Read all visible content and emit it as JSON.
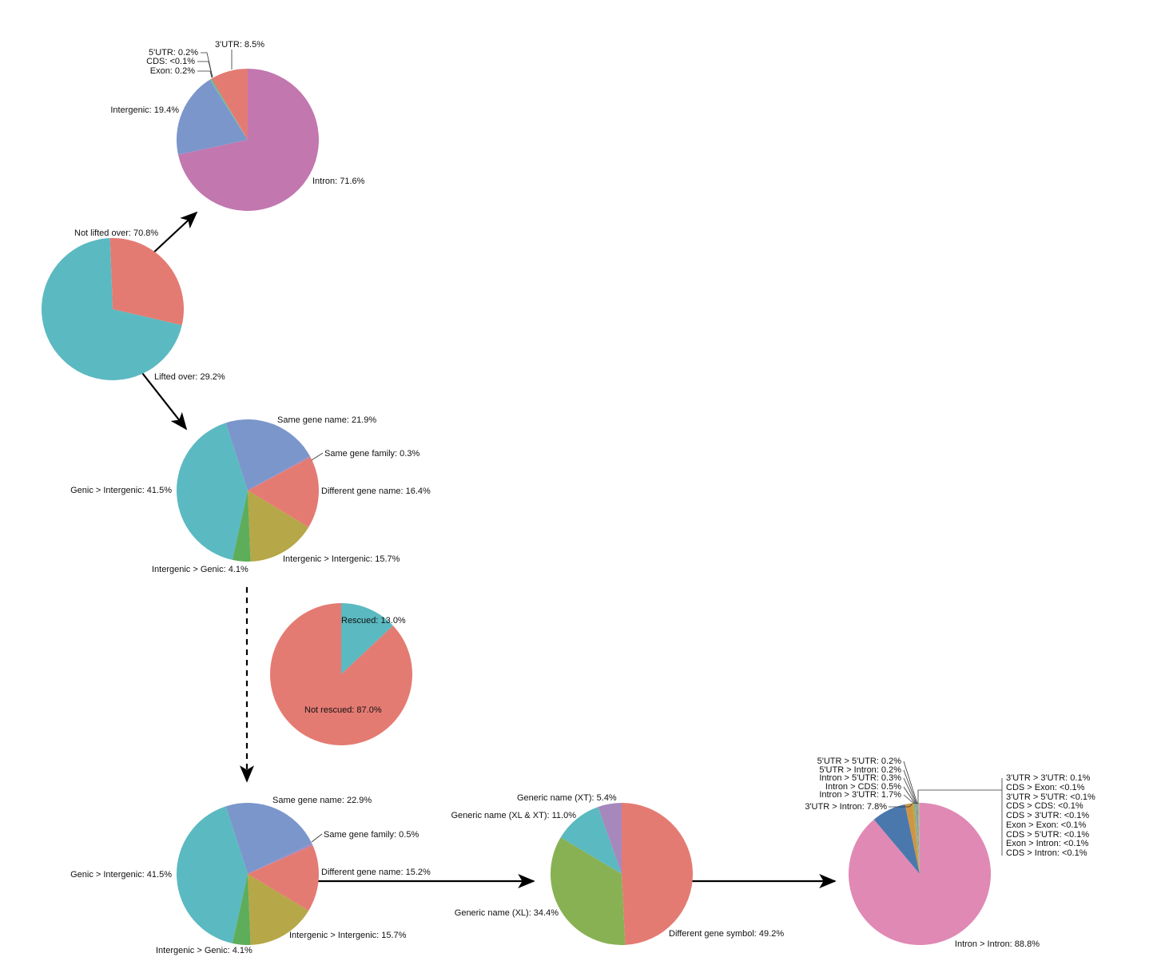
{
  "colors": {
    "teal": "#5bb9c1",
    "salmon": "#e47b73",
    "blue": "#7b96cb",
    "pink": "#c277af",
    "olive": "#b6a748",
    "green": "#5dad5a",
    "lime": "#88b153",
    "purple": "#a688bd",
    "orange": "#d09544",
    "darkblue": "#4a78ad",
    "rose": "#e089b4"
  },
  "chart_data": [
    {
      "id": "liftover",
      "type": "pie",
      "slices": [
        {
          "label": "Not lifted over: 70.8%",
          "value": 70.8,
          "color": "#5bb9c1"
        },
        {
          "label": "Lifted over: 29.2%",
          "value": 29.2,
          "color": "#e47b73"
        }
      ]
    },
    {
      "id": "not-lifted-breakdown",
      "type": "pie",
      "slices": [
        {
          "label": "Intron: 71.6%",
          "value": 71.6,
          "color": "#c277af"
        },
        {
          "label": "Intergenic: 19.4%",
          "value": 19.4,
          "color": "#7b96cb"
        },
        {
          "label": "Exon: 0.2%",
          "value": 0.2,
          "color": "#5bb9c1"
        },
        {
          "label": "CDS: <0.1%",
          "value": 0.05,
          "color": "#b6a748"
        },
        {
          "label": "5'UTR: 0.2%",
          "value": 0.2,
          "color": "#5dad5a"
        },
        {
          "label": "3'UTR: 8.5%",
          "value": 8.5,
          "color": "#e47b73"
        }
      ]
    },
    {
      "id": "lifted-breakdown",
      "type": "pie",
      "slices": [
        {
          "label": "Same gene name: 21.9%",
          "value": 21.9,
          "color": "#7b96cb"
        },
        {
          "label": "Same gene family: 0.3%",
          "value": 0.3,
          "color": "#a688bd"
        },
        {
          "label": "Different gene name: 16.4%",
          "value": 16.4,
          "color": "#e47b73"
        },
        {
          "label": "Intergenic > Intergenic: 15.7%",
          "value": 15.7,
          "color": "#b6a748"
        },
        {
          "label": "Intergenic > Genic: 4.1%",
          "value": 4.1,
          "color": "#5dad5a"
        },
        {
          "label": "Genic > Intergenic: 41.5%",
          "value": 41.5,
          "color": "#5bb9c1"
        }
      ]
    },
    {
      "id": "rescue",
      "type": "pie",
      "slices": [
        {
          "label": "Rescued: 13.0%",
          "value": 13.0,
          "color": "#5bb9c1"
        },
        {
          "label": "Not rescued: 87.0%",
          "value": 87.0,
          "color": "#e47b73"
        }
      ]
    },
    {
      "id": "after-rescue",
      "type": "pie",
      "slices": [
        {
          "label": "Same gene name: 22.9%",
          "value": 22.9,
          "color": "#7b96cb"
        },
        {
          "label": "Same gene family: 0.5%",
          "value": 0.5,
          "color": "#a688bd"
        },
        {
          "label": "Different gene name: 15.2%",
          "value": 15.2,
          "color": "#e47b73"
        },
        {
          "label": "Intergenic > Intergenic: 15.7%",
          "value": 15.7,
          "color": "#b6a748"
        },
        {
          "label": "Intergenic > Genic: 4.1%",
          "value": 4.1,
          "color": "#5dad5a"
        },
        {
          "label": "Genic > Intergenic: 41.5%",
          "value": 41.5,
          "color": "#5bb9c1"
        }
      ]
    },
    {
      "id": "different-name-breakdown",
      "type": "pie",
      "slices": [
        {
          "label": "Different gene symbol: 49.2%",
          "value": 49.2,
          "color": "#e47b73"
        },
        {
          "label": "Generic name (XL): 34.4%",
          "value": 34.4,
          "color": "#88b153"
        },
        {
          "label": "Generic name (XL & XT): 11.0%",
          "value": 11.0,
          "color": "#5bb9c1"
        },
        {
          "label": "Generic name (XT): 5.4%",
          "value": 5.4,
          "color": "#a688bd"
        }
      ]
    },
    {
      "id": "symbol-feature-breakdown",
      "type": "pie",
      "slices": [
        {
          "label": "Intron > Intron: 88.8%",
          "value": 88.8,
          "color": "#e089b4"
        },
        {
          "label": "3'UTR > Intron: 7.8%",
          "value": 7.8,
          "color": "#4a78ad"
        },
        {
          "label": "Intron > 3'UTR: 1.7%",
          "value": 1.7,
          "color": "#d09544"
        },
        {
          "label": "Intron > CDS: 0.5%",
          "value": 0.5,
          "color": "#b6a748"
        },
        {
          "label": "Intron > 5'UTR: 0.3%",
          "value": 0.3,
          "color": "#5bb9c1"
        },
        {
          "label": "5'UTR > Intron: 0.2%",
          "value": 0.2,
          "color": "#c277af"
        },
        {
          "label": "5'UTR > 5'UTR: 0.2%",
          "value": 0.2,
          "color": "#5dad5a"
        },
        {
          "label": "3'UTR > 3'UTR: 0.1%",
          "value": 0.1,
          "color": "#e47b73"
        },
        {
          "label": "CDS > Exon: <0.1%",
          "value": 0.04,
          "color": "#7b96cb"
        },
        {
          "label": "3'UTR > 5'UTR: <0.1%",
          "value": 0.04,
          "color": "#88b153"
        },
        {
          "label": "CDS > CDS: <0.1%",
          "value": 0.04,
          "color": "#a688bd"
        },
        {
          "label": "CDS > 3'UTR: <0.1%",
          "value": 0.04,
          "color": "#d09544"
        },
        {
          "label": "Exon > Exon: <0.1%",
          "value": 0.04,
          "color": "#5bb9c1"
        },
        {
          "label": "CDS > 5'UTR: <0.1%",
          "value": 0.04,
          "color": "#e47b73"
        },
        {
          "label": "Exon > Intron: <0.1%",
          "value": 0.04,
          "color": "#b6a748"
        },
        {
          "label": "CDS > Intron: <0.1%",
          "value": 0.04,
          "color": "#5dad5a"
        }
      ]
    }
  ]
}
